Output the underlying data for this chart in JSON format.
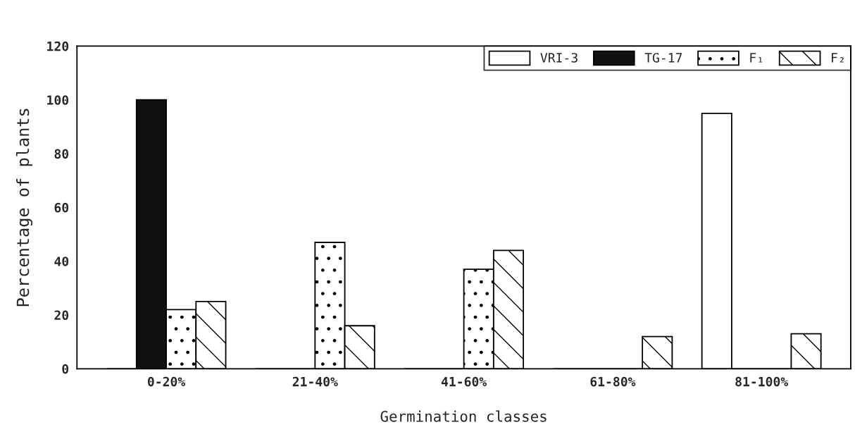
{
  "chart_data": {
    "type": "bar",
    "xlabel": "Germination classes",
    "ylabel": "Percentage of plants",
    "categories": [
      "0-20%",
      "21-40%",
      "41-60%",
      "61-80%",
      "81-100%"
    ],
    "series": [
      {
        "name": "VRI-3",
        "color": "#ffffff",
        "values": [
          0,
          0,
          0,
          0,
          95
        ]
      },
      {
        "name": "TG-17",
        "color": "#111111",
        "values": [
          100,
          0,
          0,
          0,
          0
        ]
      },
      {
        "name": "F₁",
        "color": "#ffffff",
        "values": [
          22,
          47,
          37,
          0,
          0
        ]
      },
      {
        "name": "F₂",
        "color": "#ffffff",
        "values": [
          25,
          16,
          44,
          12,
          13
        ]
      }
    ],
    "ylim": [
      0,
      120
    ],
    "yticks": [
      0,
      20,
      40,
      60,
      80,
      100,
      120
    ],
    "grid": false,
    "legend": "top right"
  }
}
